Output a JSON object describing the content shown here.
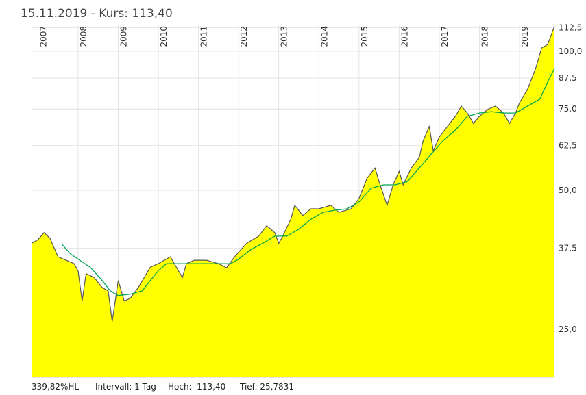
{
  "chart_data": {
    "type": "area",
    "title": "15.11.2019 - Kurs: 113,40",
    "log_scale": true,
    "grid": true,
    "xlim": [
      2006.84,
      2019.87
    ],
    "xticks": [
      2007,
      2008,
      2009,
      2010,
      2011,
      2012,
      2013,
      2014,
      2015,
      2016,
      2017,
      2018,
      2019
    ],
    "ylim": [
      19.7,
      114.2
    ],
    "yticks": [
      {
        "value": 25,
        "label": "25,0"
      },
      {
        "value": 37.5,
        "label": "37,5"
      },
      {
        "value": 50,
        "label": "50,0"
      },
      {
        "value": 62.5,
        "label": "62,5"
      },
      {
        "value": 75,
        "label": "75,0"
      },
      {
        "value": 87.5,
        "label": "87,5"
      },
      {
        "value": 100,
        "label": "100,0"
      },
      {
        "value": 112.5,
        "label": "112,5"
      }
    ],
    "series": [
      {
        "color": "#ffff00",
        "line_color": "#555555",
        "x": [
          2006.84,
          2007.0,
          2007.15,
          2007.3,
          2007.5,
          2007.7,
          2007.9,
          2008.0,
          2008.1,
          2008.2,
          2008.4,
          2008.6,
          2008.75,
          2008.85,
          2008.95,
          2009.0,
          2009.15,
          2009.3,
          2009.5,
          2009.65,
          2009.8,
          2010.0,
          2010.3,
          2010.5,
          2010.6,
          2010.7,
          2010.9,
          2011.2,
          2011.5,
          2011.7,
          2011.9,
          2012.2,
          2012.5,
          2012.7,
          2012.9,
          2013.0,
          2013.1,
          2013.3,
          2013.4,
          2013.6,
          2013.8,
          2014.0,
          2014.3,
          2014.5,
          2014.8,
          2015.0,
          2015.2,
          2015.4,
          2015.5,
          2015.7,
          2015.85,
          2016.0,
          2016.1,
          2016.3,
          2016.5,
          2016.6,
          2016.75,
          2016.85,
          2017.0,
          2017.2,
          2017.4,
          2017.55,
          2017.7,
          2017.85,
          2018.0,
          2018.2,
          2018.4,
          2018.6,
          2018.75,
          2018.9,
          2019.0,
          2019.2,
          2019.4,
          2019.55,
          2019.7,
          2019.87
        ],
        "values": [
          38.4,
          39.1,
          40.5,
          39.4,
          35.9,
          35.3,
          34.7,
          33.5,
          28.8,
          33.0,
          32.4,
          30.8,
          30.3,
          26.0,
          29.8,
          31.9,
          28.8,
          29.2,
          30.8,
          32.4,
          34.1,
          34.7,
          35.9,
          33.5,
          32.4,
          34.7,
          35.3,
          35.3,
          34.7,
          34.0,
          35.9,
          38.4,
          39.8,
          41.9,
          40.5,
          38.4,
          39.8,
          43.3,
          46.4,
          44.1,
          45.6,
          45.6,
          46.4,
          44.8,
          45.6,
          48.0,
          53.1,
          55.9,
          52.2,
          46.4,
          51.4,
          55.0,
          51.4,
          55.9,
          58.9,
          64.1,
          68.7,
          60.9,
          65.2,
          68.7,
          72.3,
          76.1,
          73.5,
          69.8,
          72.3,
          74.8,
          76.1,
          73.5,
          69.8,
          73.5,
          77.4,
          82.8,
          91.8,
          101.7,
          103.4,
          113.4
        ]
      },
      {
        "color": "#00a651",
        "x": [
          2007.6,
          2007.8,
          2008.0,
          2008.3,
          2008.6,
          2008.8,
          2009.0,
          2009.3,
          2009.6,
          2009.8,
          2010.0,
          2010.2,
          2010.5,
          2010.8,
          2011.2,
          2011.5,
          2011.8,
          2012.0,
          2012.3,
          2012.6,
          2012.9,
          2013.2,
          2013.5,
          2013.8,
          2014.1,
          2014.4,
          2014.7,
          2015.0,
          2015.3,
          2015.6,
          2015.9,
          2016.2,
          2016.5,
          2016.8,
          2017.1,
          2017.4,
          2017.7,
          2018.0,
          2018.3,
          2018.6,
          2018.9,
          2019.2,
          2019.5,
          2019.7,
          2019.87
        ],
        "values": [
          38.2,
          36.5,
          35.5,
          34.1,
          31.9,
          30.3,
          29.6,
          29.8,
          30.3,
          31.9,
          33.5,
          34.7,
          34.7,
          34.7,
          34.7,
          34.7,
          34.7,
          35.5,
          37.2,
          38.4,
          39.8,
          39.8,
          41.2,
          43.3,
          44.8,
          45.3,
          45.6,
          47.2,
          50.5,
          51.4,
          51.4,
          52.2,
          55.9,
          59.9,
          64.1,
          67.5,
          72.3,
          73.5,
          74.0,
          73.5,
          73.5,
          76.1,
          78.7,
          85.7,
          91.8
        ]
      }
    ]
  },
  "footer": [
    "339,82%HL",
    "Intervall: 1 Tag",
    "Hoch:  113,40",
    "Tief: 25,7831"
  ]
}
